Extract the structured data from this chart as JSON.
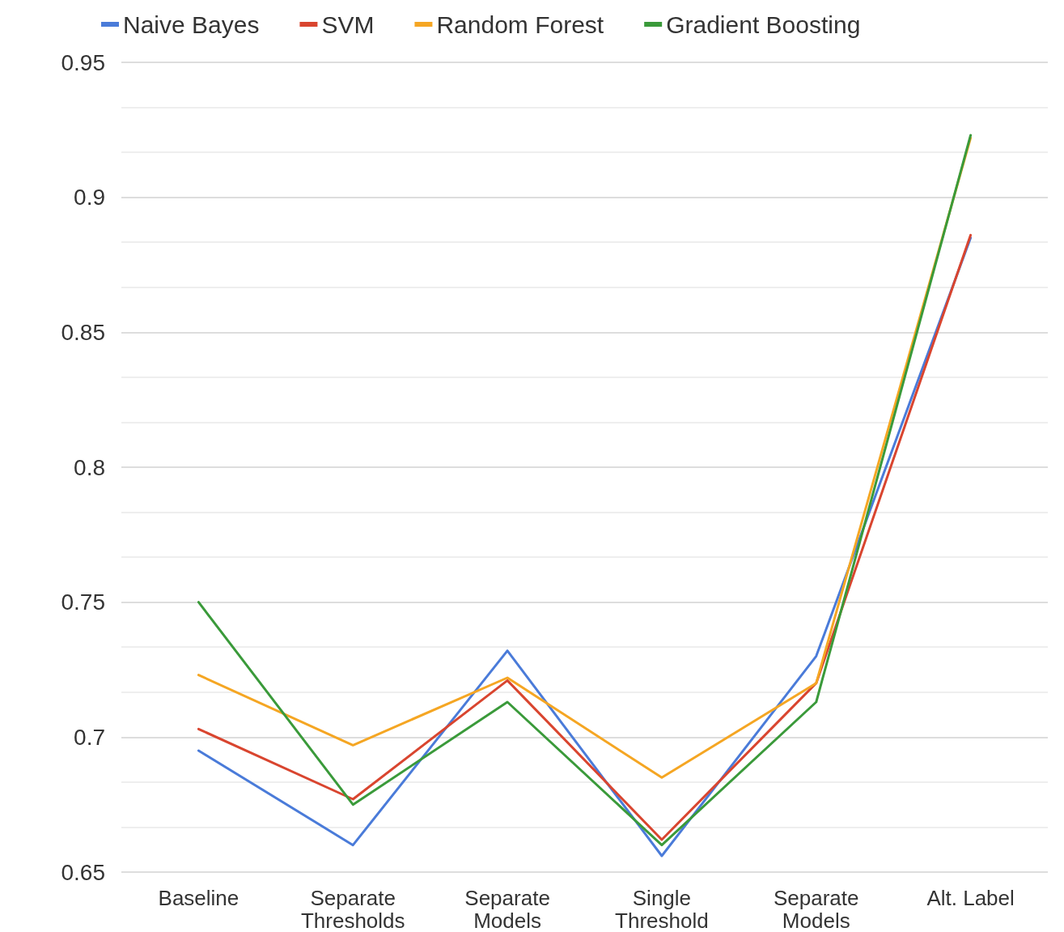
{
  "chart_data": {
    "type": "line",
    "categories": [
      "Baseline",
      "Separate Thresholds",
      "Separate Models",
      "Single Threshold",
      "Separate Models",
      "Alt. Label"
    ],
    "series": [
      {
        "name": "Naive Bayes",
        "color": "#4a7bd9",
        "values": [
          0.695,
          0.66,
          0.732,
          0.656,
          0.73,
          0.885
        ]
      },
      {
        "name": "SVM",
        "color": "#d9452f",
        "values": [
          0.703,
          0.677,
          0.721,
          0.662,
          0.72,
          0.886
        ]
      },
      {
        "name": "Random Forest",
        "color": "#f5a623",
        "values": [
          0.723,
          0.697,
          0.722,
          0.685,
          0.72,
          0.922
        ]
      },
      {
        "name": "Gradient Boosting",
        "color": "#3a9a3a",
        "values": [
          0.75,
          0.675,
          0.713,
          0.66,
          0.713,
          0.923
        ]
      }
    ],
    "ylim": [
      0.65,
      0.95
    ],
    "yticks": [
      0.65,
      0.7,
      0.75,
      0.8,
      0.85,
      0.9,
      0.95
    ],
    "grid": "y",
    "legend": "top",
    "marker": "none",
    "line_style": "solid"
  }
}
